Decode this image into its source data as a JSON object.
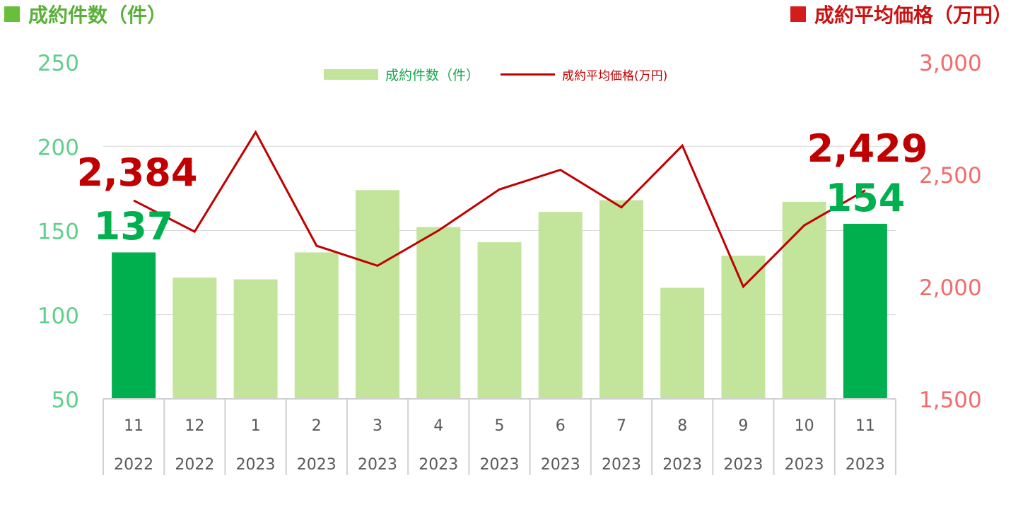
{
  "header": {
    "left_title": "成約件数（件）",
    "right_title": "成約平均価格（万円）",
    "left_color": "#6abf3a",
    "right_color": "#d41c1c"
  },
  "chart_data": {
    "type": "bar",
    "categories": [
      {
        "month": "11",
        "year": "2022"
      },
      {
        "month": "12",
        "year": "2022"
      },
      {
        "month": "1",
        "year": "2023"
      },
      {
        "month": "2",
        "year": "2023"
      },
      {
        "month": "3",
        "year": "2023"
      },
      {
        "month": "4",
        "year": "2023"
      },
      {
        "month": "5",
        "year": "2023"
      },
      {
        "month": "6",
        "year": "2023"
      },
      {
        "month": "7",
        "year": "2023"
      },
      {
        "month": "8",
        "year": "2023"
      },
      {
        "month": "9",
        "year": "2023"
      },
      {
        "month": "10",
        "year": "2023"
      },
      {
        "month": "11",
        "year": "2023"
      }
    ],
    "series": [
      {
        "name": "成約件数（件）",
        "type": "bar",
        "axis": "left",
        "values": [
          137,
          122,
          121,
          137,
          174,
          152,
          143,
          161,
          168,
          116,
          135,
          167,
          154
        ],
        "color": "#c3e49b",
        "highlight_color": "#00b04f",
        "highlight_indices": [
          0,
          12
        ]
      },
      {
        "name": "成約平均価格(万円)",
        "type": "line",
        "axis": "right",
        "values": [
          2384,
          2245,
          2688,
          2182,
          2093,
          2250,
          2433,
          2520,
          2353,
          2628,
          2000,
          2273,
          2429
        ],
        "color": "#c00000"
      }
    ],
    "left_axis": {
      "min": 50,
      "max": 250,
      "ticks": [
        "250",
        "200",
        "150",
        "100",
        "50"
      ],
      "color": "#5fcf8a"
    },
    "right_axis": {
      "min": 1500,
      "max": 3000,
      "ticks": [
        "3,000",
        "2,500",
        "2,000",
        "1,500"
      ],
      "color": "#f26b6b"
    },
    "callouts": {
      "first_count": "137",
      "last_count": "154",
      "first_price": "2,384",
      "last_price": "2,429"
    },
    "grid": true,
    "legend_position": "top-center"
  }
}
